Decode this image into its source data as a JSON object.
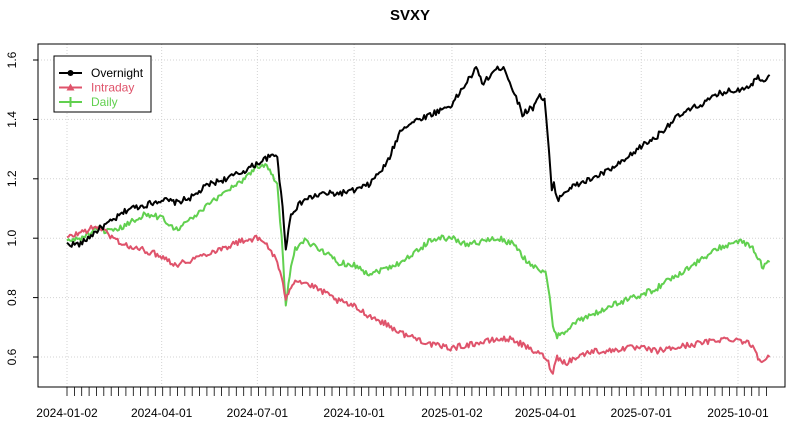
{
  "chart_data": {
    "type": "line",
    "title": "SVXY",
    "xlabel": "",
    "ylabel": "",
    "x_tick_labels": [
      "2024-01-02",
      "2024-04-01",
      "2024-07-01",
      "2024-10-01",
      "2025-01-02",
      "2025-04-01",
      "2025-07-01",
      "2025-10-01"
    ],
    "y_tick_labels": [
      "0.6",
      "0.8",
      "1.0",
      "1.2",
      "1.4",
      "1.6"
    ],
    "ylim": [
      0.53,
      1.62
    ],
    "grid": true,
    "legend_position": "top-left",
    "series": [
      {
        "name": "Overnight",
        "color": "#000000",
        "marker": "circle",
        "points": [
          [
            "2024-01-02",
            0.98
          ],
          [
            "2024-01-15",
            0.98
          ],
          [
            "2024-02-01",
            1.03
          ],
          [
            "2024-02-15",
            1.06
          ],
          [
            "2024-03-01",
            1.1
          ],
          [
            "2024-03-15",
            1.11
          ],
          [
            "2024-04-01",
            1.13
          ],
          [
            "2024-04-15",
            1.12
          ],
          [
            "2024-05-01",
            1.14
          ],
          [
            "2024-05-15",
            1.18
          ],
          [
            "2024-06-01",
            1.2
          ],
          [
            "2024-06-15",
            1.22
          ],
          [
            "2024-06-30",
            1.25
          ],
          [
            "2024-07-10",
            1.27
          ],
          [
            "2024-07-20",
            1.28
          ],
          [
            "2024-07-22",
            1.2
          ],
          [
            "2024-07-25",
            1.1
          ],
          [
            "2024-07-28",
            0.97
          ],
          [
            "2024-08-02",
            1.08
          ],
          [
            "2024-08-06",
            1.1
          ],
          [
            "2024-08-15",
            1.13
          ],
          [
            "2024-09-01",
            1.15
          ],
          [
            "2024-09-15",
            1.15
          ],
          [
            "2024-10-01",
            1.16
          ],
          [
            "2024-10-15",
            1.18
          ],
          [
            "2024-11-01",
            1.25
          ],
          [
            "2024-11-15",
            1.37
          ],
          [
            "2024-12-01",
            1.4
          ],
          [
            "2024-12-15",
            1.42
          ],
          [
            "2025-01-02",
            1.45
          ],
          [
            "2025-01-15",
            1.52
          ],
          [
            "2025-01-25",
            1.57
          ],
          [
            "2025-02-01",
            1.52
          ],
          [
            "2025-02-10",
            1.56
          ],
          [
            "2025-02-20",
            1.58
          ],
          [
            "2025-03-01",
            1.5
          ],
          [
            "2025-03-10",
            1.42
          ],
          [
            "2025-03-20",
            1.44
          ],
          [
            "2025-03-25",
            1.48
          ],
          [
            "2025-03-31",
            1.47
          ],
          [
            "2025-04-03",
            1.35
          ],
          [
            "2025-04-07",
            1.16
          ],
          [
            "2025-04-09",
            1.18
          ],
          [
            "2025-04-12",
            1.13
          ],
          [
            "2025-04-20",
            1.16
          ],
          [
            "2025-05-01",
            1.18
          ],
          [
            "2025-05-15",
            1.2
          ],
          [
            "2025-06-01",
            1.23
          ],
          [
            "2025-06-15",
            1.26
          ],
          [
            "2025-07-01",
            1.31
          ],
          [
            "2025-07-15",
            1.34
          ],
          [
            "2025-08-01",
            1.4
          ],
          [
            "2025-08-15",
            1.43
          ],
          [
            "2025-09-01",
            1.46
          ],
          [
            "2025-09-15",
            1.49
          ],
          [
            "2025-10-01",
            1.5
          ],
          [
            "2025-10-15",
            1.52
          ],
          [
            "2025-10-20",
            1.55
          ],
          [
            "2025-10-24",
            1.53
          ],
          [
            "2025-10-31",
            1.55
          ]
        ]
      },
      {
        "name": "Intraday",
        "color": "#DF536B",
        "marker": "triangle",
        "points": [
          [
            "2024-01-02",
            1.0
          ],
          [
            "2024-01-15",
            1.02
          ],
          [
            "2024-02-01",
            1.04
          ],
          [
            "2024-02-15",
            1.0
          ],
          [
            "2024-03-01",
            0.97
          ],
          [
            "2024-03-15",
            0.96
          ],
          [
            "2024-04-01",
            0.94
          ],
          [
            "2024-04-15",
            0.91
          ],
          [
            "2024-05-01",
            0.93
          ],
          [
            "2024-05-15",
            0.95
          ],
          [
            "2024-06-01",
            0.97
          ],
          [
            "2024-06-15",
            0.99
          ],
          [
            "2024-06-30",
            1.0
          ],
          [
            "2024-07-10",
            0.98
          ],
          [
            "2024-07-20",
            0.92
          ],
          [
            "2024-07-24",
            0.86
          ],
          [
            "2024-07-28",
            0.8
          ],
          [
            "2024-08-02",
            0.84
          ],
          [
            "2024-08-06",
            0.86
          ],
          [
            "2024-08-15",
            0.85
          ],
          [
            "2024-09-01",
            0.82
          ],
          [
            "2024-09-15",
            0.79
          ],
          [
            "2024-10-01",
            0.77
          ],
          [
            "2024-10-15",
            0.74
          ],
          [
            "2024-11-01",
            0.71
          ],
          [
            "2024-11-15",
            0.68
          ],
          [
            "2024-12-01",
            0.66
          ],
          [
            "2024-12-15",
            0.64
          ],
          [
            "2025-01-02",
            0.63
          ],
          [
            "2025-01-15",
            0.64
          ],
          [
            "2025-02-01",
            0.65
          ],
          [
            "2025-02-15",
            0.66
          ],
          [
            "2025-03-01",
            0.66
          ],
          [
            "2025-03-15",
            0.63
          ],
          [
            "2025-04-01",
            0.6
          ],
          [
            "2025-04-05",
            0.57
          ],
          [
            "2025-04-08",
            0.55
          ],
          [
            "2025-04-12",
            0.6
          ],
          [
            "2025-04-20",
            0.58
          ],
          [
            "2025-05-01",
            0.6
          ],
          [
            "2025-05-15",
            0.62
          ],
          [
            "2025-06-01",
            0.62
          ],
          [
            "2025-06-15",
            0.63
          ],
          [
            "2025-07-01",
            0.63
          ],
          [
            "2025-07-15",
            0.62
          ],
          [
            "2025-08-01",
            0.63
          ],
          [
            "2025-08-15",
            0.64
          ],
          [
            "2025-09-01",
            0.65
          ],
          [
            "2025-09-15",
            0.66
          ],
          [
            "2025-10-01",
            0.66
          ],
          [
            "2025-10-15",
            0.64
          ],
          [
            "2025-10-20",
            0.6
          ],
          [
            "2025-10-25",
            0.59
          ],
          [
            "2025-10-31",
            0.6
          ]
        ]
      },
      {
        "name": "Daily",
        "color": "#61D04F",
        "marker": "cross",
        "points": [
          [
            "2024-01-02",
            0.99
          ],
          [
            "2024-01-15",
            1.0
          ],
          [
            "2024-02-01",
            1.03
          ],
          [
            "2024-02-15",
            1.02
          ],
          [
            "2024-03-01",
            1.05
          ],
          [
            "2024-03-15",
            1.08
          ],
          [
            "2024-04-01",
            1.07
          ],
          [
            "2024-04-15",
            1.03
          ],
          [
            "2024-05-01",
            1.07
          ],
          [
            "2024-05-15",
            1.11
          ],
          [
            "2024-06-01",
            1.16
          ],
          [
            "2024-06-15",
            1.19
          ],
          [
            "2024-06-30",
            1.24
          ],
          [
            "2024-07-10",
            1.25
          ],
          [
            "2024-07-20",
            1.18
          ],
          [
            "2024-07-24",
            1.0
          ],
          [
            "2024-07-28",
            0.78
          ],
          [
            "2024-08-02",
            0.9
          ],
          [
            "2024-08-06",
            0.96
          ],
          [
            "2024-08-15",
            0.99
          ],
          [
            "2024-09-01",
            0.96
          ],
          [
            "2024-09-15",
            0.92
          ],
          [
            "2024-10-01",
            0.91
          ],
          [
            "2024-10-15",
            0.88
          ],
          [
            "2024-11-01",
            0.9
          ],
          [
            "2024-11-15",
            0.92
          ],
          [
            "2024-12-01",
            0.96
          ],
          [
            "2024-12-15",
            1.0
          ],
          [
            "2025-01-02",
            1.0
          ],
          [
            "2025-01-15",
            0.98
          ],
          [
            "2025-02-01",
            0.99
          ],
          [
            "2025-02-15",
            1.0
          ],
          [
            "2025-03-01",
            0.98
          ],
          [
            "2025-03-15",
            0.92
          ],
          [
            "2025-04-01",
            0.88
          ],
          [
            "2025-04-05",
            0.8
          ],
          [
            "2025-04-08",
            0.7
          ],
          [
            "2025-04-12",
            0.67
          ],
          [
            "2025-04-20",
            0.69
          ],
          [
            "2025-05-01",
            0.72
          ],
          [
            "2025-05-15",
            0.74
          ],
          [
            "2025-06-01",
            0.77
          ],
          [
            "2025-06-15",
            0.79
          ],
          [
            "2025-07-01",
            0.81
          ],
          [
            "2025-07-15",
            0.83
          ],
          [
            "2025-08-01",
            0.87
          ],
          [
            "2025-08-15",
            0.9
          ],
          [
            "2025-09-01",
            0.94
          ],
          [
            "2025-09-15",
            0.97
          ],
          [
            "2025-10-01",
            0.99
          ],
          [
            "2025-10-15",
            0.97
          ],
          [
            "2025-10-20",
            0.93
          ],
          [
            "2025-10-25",
            0.9
          ],
          [
            "2025-10-31",
            0.92
          ]
        ]
      }
    ]
  }
}
